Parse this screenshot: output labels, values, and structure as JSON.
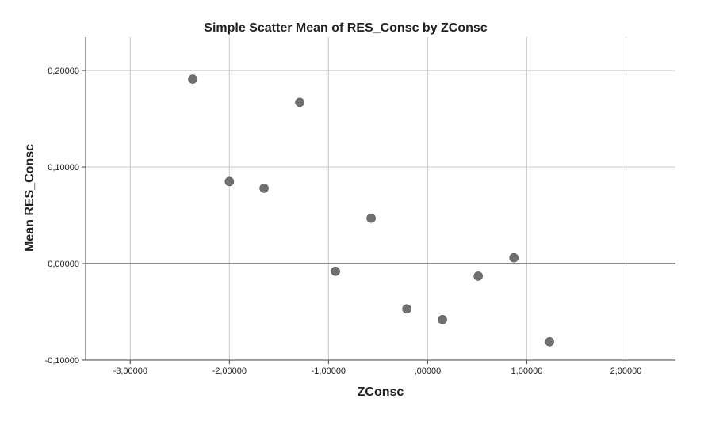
{
  "chart_data": {
    "type": "scatter",
    "title": "Simple Scatter Mean of RES_Consc by ZConsc",
    "xlabel": "ZConsc",
    "ylabel": "Mean RES_Consc",
    "xlim": [
      -3.45,
      2.5
    ],
    "ylim": [
      -0.1,
      0.2345
    ],
    "x_ticks": [
      -3,
      -2,
      -1,
      0,
      1,
      2
    ],
    "x_tick_labels": [
      "-3,00000",
      "-2,00000",
      "-1,00000",
      ",00000",
      "1,00000",
      "2,00000"
    ],
    "y_ticks": [
      -0.1,
      0,
      0.1,
      0.2
    ],
    "y_tick_labels": [
      "-0,10000",
      "0,00000",
      "0,10000",
      "0,20000"
    ],
    "grid": true,
    "reference_line_y": 0,
    "marker_color": "#707070",
    "grid_color": "#c8c8c8",
    "axis_color": "#444444",
    "points": [
      {
        "x": -2.37,
        "y": 0.191
      },
      {
        "x": -2.0,
        "y": 0.085
      },
      {
        "x": -1.65,
        "y": 0.078
      },
      {
        "x": -1.29,
        "y": 0.167
      },
      {
        "x": -0.93,
        "y": -0.008
      },
      {
        "x": -0.57,
        "y": 0.047
      },
      {
        "x": -0.21,
        "y": -0.047
      },
      {
        "x": 0.15,
        "y": -0.058
      },
      {
        "x": 0.51,
        "y": -0.013
      },
      {
        "x": 0.87,
        "y": 0.006
      },
      {
        "x": 1.23,
        "y": -0.081
      }
    ]
  }
}
